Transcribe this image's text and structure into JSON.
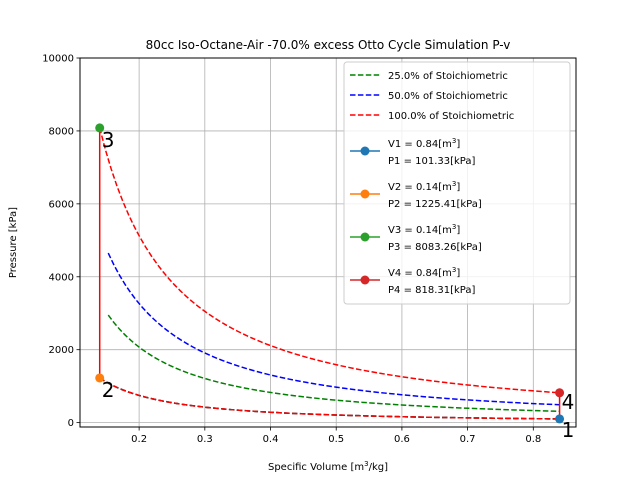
{
  "chart_data": {
    "type": "line",
    "title": "80cc Iso-Octane-Air -70.0% excess Otto Cycle Simulation P-v",
    "xlabel_prefix": "Specific Volume [m",
    "xlabel_sup": "3",
    "xlabel_suffix": "/kg]",
    "ylabel": "Pressure [kPa]",
    "xlim": [
      0.11,
      0.865
    ],
    "ylim": [
      -120,
      10000
    ],
    "xticks": [
      0.2,
      0.3,
      0.4,
      0.5,
      0.6,
      0.7,
      0.8
    ],
    "yticks": [
      0,
      2000,
      4000,
      6000,
      8000,
      10000
    ],
    "xtick_labels": [
      "0.2",
      "0.3",
      "0.4",
      "0.5",
      "0.6",
      "0.7",
      "0.8"
    ],
    "ytick_labels": [
      "0",
      "2000",
      "4000",
      "6000",
      "8000",
      "10000"
    ],
    "grid": true,
    "legend_position": "top-right",
    "dashed_series": [
      {
        "name": "25.0% of Stoichiometric",
        "color": "#008000",
        "x_start": 0.153,
        "x_end": 0.84,
        "y_start": 2950,
        "y_end": 310
      },
      {
        "name": "50.0% of Stoichiometric",
        "color": "#0000ff",
        "x_start": 0.153,
        "x_end": 0.84,
        "y_start": 4650,
        "y_end": 490
      },
      {
        "name": "100.0% of Stoichiometric",
        "color": "#ff0000",
        "x_start": 0.14,
        "x_end": 0.84,
        "y_start": 8083.26,
        "y_end": 818.31
      },
      {
        "name": "",
        "color": "#0000ff",
        "x_start": 0.14,
        "x_end": 0.84,
        "y_start": 1225.41,
        "y_end": 101.33
      },
      {
        "name": "",
        "color": "#008000",
        "x_start": 0.14,
        "x_end": 0.84,
        "y_start": 1225.41,
        "y_end": 101.33
      },
      {
        "name": "",
        "color": "#ff0000",
        "x_start": 0.14,
        "x_end": 0.84,
        "y_start": 1225.41,
        "y_end": 101.33
      }
    ],
    "state_points": [
      {
        "v_label": "V1 = 0.84[m",
        "p_label": "P1 = 101.33[kPa]",
        "state": "1",
        "x": 0.84,
        "y": 101.33,
        "color": "#1f77b4"
      },
      {
        "v_label": "V2 = 0.14[m",
        "p_label": "P2 = 1225.41[kPa]",
        "state": "2",
        "x": 0.14,
        "y": 1225.41,
        "color": "#ff7f0e"
      },
      {
        "v_label": "V3 = 0.14[m",
        "p_label": "P3 = 8083.26[kPa]",
        "state": "3",
        "x": 0.14,
        "y": 8083.26,
        "color": "#2ca02c"
      },
      {
        "v_label": "V4 = 0.84[m",
        "p_label": "P4 = 818.31[kPa]",
        "state": "4",
        "x": 0.84,
        "y": 818.31,
        "color": "#d62728"
      }
    ],
    "v_label_sup": "3",
    "v_label_suffix": "]",
    "vertical_lines": [
      {
        "x": 0.14,
        "y_from": 1225.41,
        "y_to": 8083.26,
        "color": "#ff0000"
      },
      {
        "x": 0.84,
        "y_from": 101.33,
        "y_to": 818.31,
        "color": "#ff0000"
      }
    ]
  }
}
